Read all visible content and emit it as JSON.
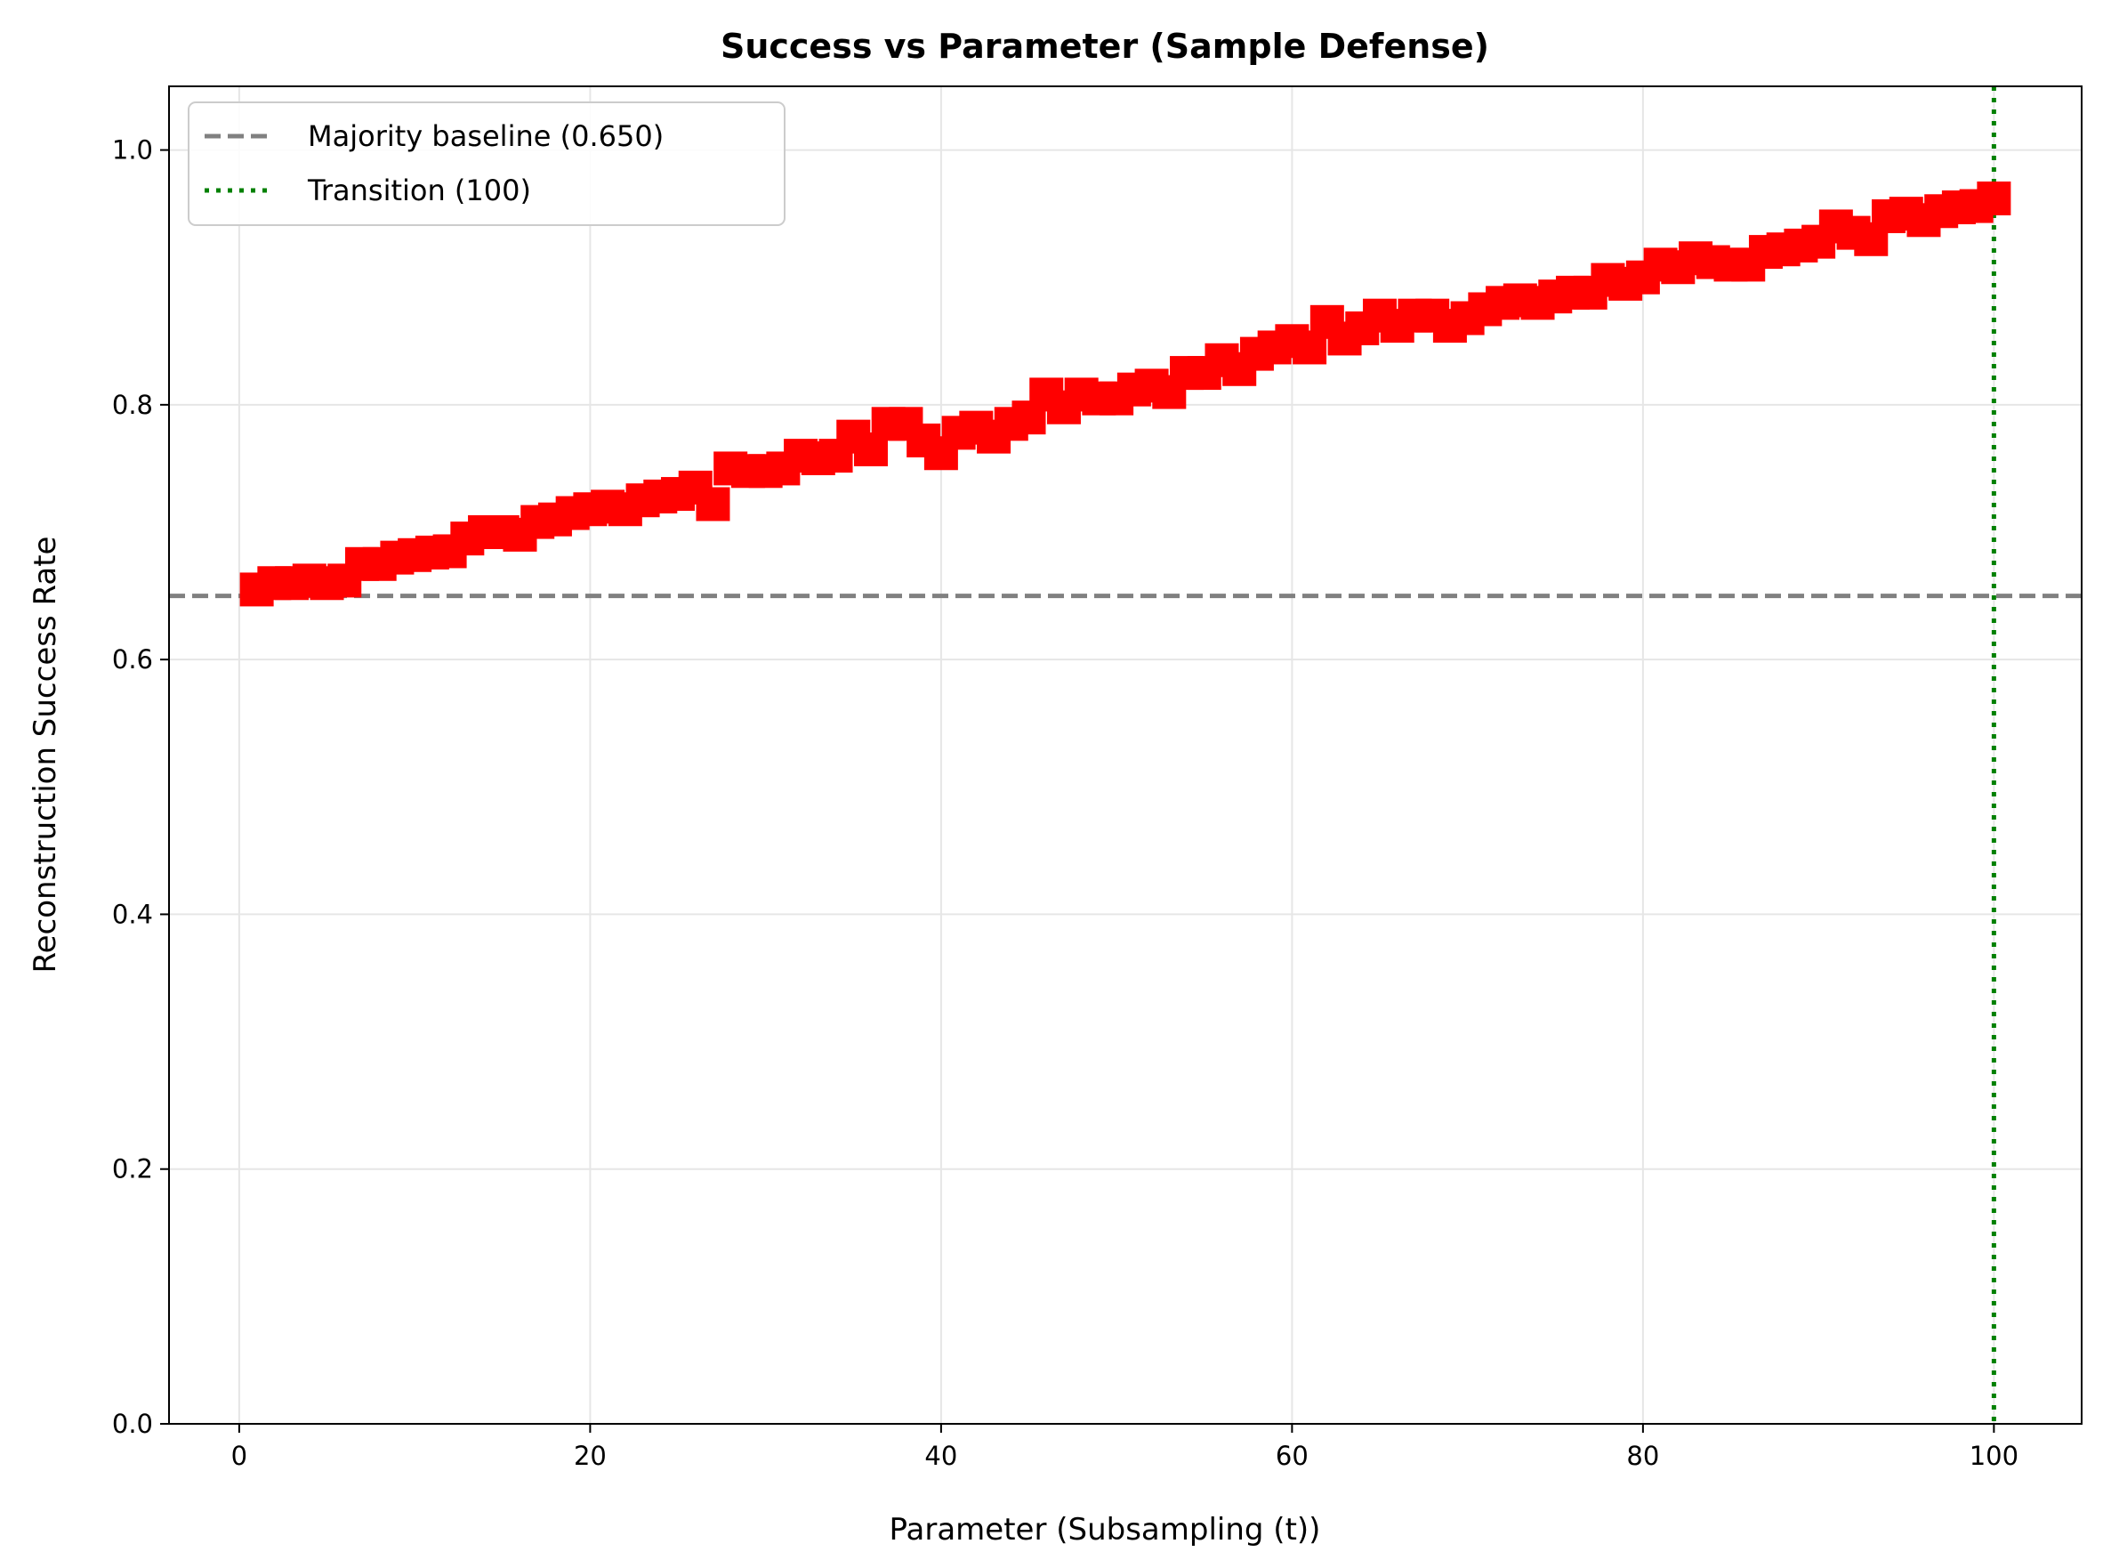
{
  "chart_data": {
    "type": "line",
    "title": "Success vs Parameter (Sample Defense)",
    "xlabel": "Parameter (Subsampling (t))",
    "ylabel": "Reconstruction Success Rate",
    "xlim": [
      -4,
      105
    ],
    "ylim": [
      0.0,
      1.05
    ],
    "xticks": [
      0,
      20,
      40,
      60,
      80,
      100
    ],
    "yticks": [
      0.0,
      0.2,
      0.4,
      0.6,
      0.8,
      1.0
    ],
    "xtick_labels": [
      "0",
      "20",
      "40",
      "60",
      "80",
      "100"
    ],
    "ytick_labels": [
      "0.0",
      "0.2",
      "0.4",
      "0.6",
      "0.8",
      "1.0"
    ],
    "grid": true,
    "legend_position": "top-left",
    "series": [
      {
        "color": "#ff0000",
        "marker": "square",
        "x": [
          1,
          2,
          3,
          4,
          5,
          6,
          7,
          8,
          9,
          10,
          11,
          12,
          13,
          14,
          15,
          16,
          17,
          18,
          19,
          20,
          21,
          22,
          23,
          24,
          25,
          26,
          27,
          28,
          29,
          30,
          31,
          32,
          33,
          34,
          35,
          36,
          37,
          38,
          39,
          40,
          41,
          42,
          43,
          44,
          45,
          46,
          47,
          48,
          49,
          50,
          51,
          52,
          53,
          54,
          55,
          56,
          57,
          58,
          59,
          60,
          61,
          62,
          63,
          64,
          65,
          66,
          67,
          68,
          69,
          70,
          71,
          72,
          73,
          74,
          75,
          76,
          77,
          78,
          79,
          80,
          81,
          82,
          83,
          84,
          85,
          86,
          87,
          88,
          89,
          90,
          91,
          92,
          93,
          94,
          95,
          96,
          97,
          98,
          99,
          100
        ],
        "y": [
          0.655,
          0.66,
          0.66,
          0.662,
          0.66,
          0.662,
          0.675,
          0.675,
          0.68,
          0.682,
          0.684,
          0.685,
          0.695,
          0.7,
          0.7,
          0.698,
          0.708,
          0.71,
          0.715,
          0.718,
          0.72,
          0.718,
          0.725,
          0.728,
          0.73,
          0.735,
          0.722,
          0.75,
          0.748,
          0.748,
          0.75,
          0.76,
          0.758,
          0.76,
          0.775,
          0.765,
          0.785,
          0.785,
          0.772,
          0.762,
          0.778,
          0.782,
          0.775,
          0.785,
          0.79,
          0.808,
          0.798,
          0.808,
          0.805,
          0.805,
          0.812,
          0.815,
          0.81,
          0.825,
          0.825,
          0.835,
          0.828,
          0.84,
          0.845,
          0.85,
          0.845,
          0.865,
          0.852,
          0.86,
          0.87,
          0.862,
          0.87,
          0.87,
          0.862,
          0.868,
          0.875,
          0.88,
          0.882,
          0.88,
          0.885,
          0.888,
          0.888,
          0.898,
          0.895,
          0.9,
          0.91,
          0.908,
          0.915,
          0.912,
          0.91,
          0.91,
          0.92,
          0.922,
          0.925,
          0.928,
          0.94,
          0.935,
          0.93,
          0.948,
          0.95,
          0.945,
          0.952,
          0.955,
          0.956,
          0.962
        ]
      }
    ],
    "reference_lines": [
      {
        "orientation": "horizontal",
        "value": 0.65,
        "color": "#808080",
        "style": "dashed",
        "label": "Majority baseline (0.650)"
      },
      {
        "orientation": "vertical",
        "value": 100,
        "color": "#008000",
        "style": "dotted",
        "label": "Transition (100)"
      }
    ]
  }
}
